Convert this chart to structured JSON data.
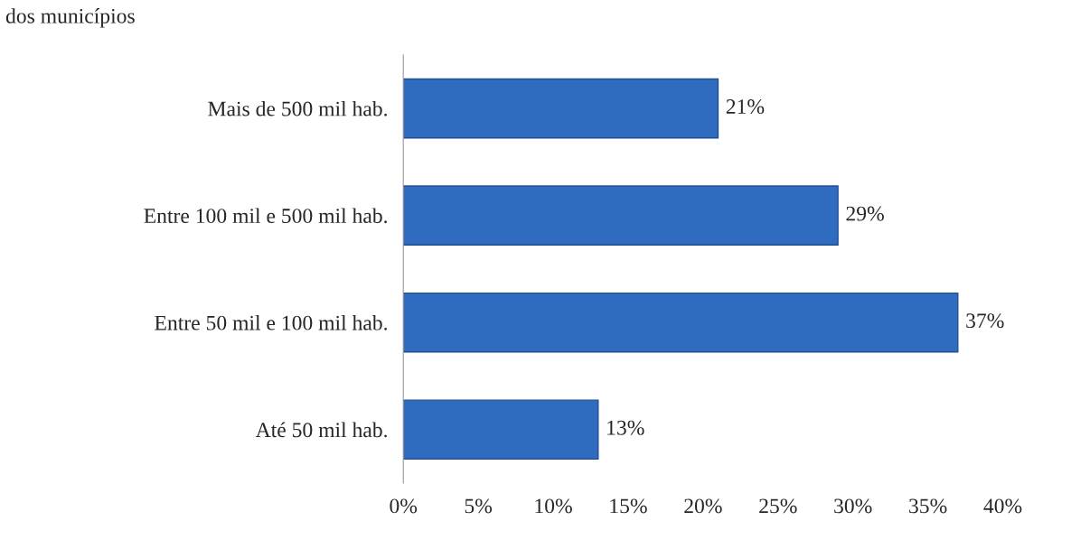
{
  "chart_data": {
    "type": "bar",
    "orientation": "horizontal",
    "title": "dos municípios",
    "categories": [
      "Mais de 500 mil hab.",
      "Entre 100 mil e 500 mil hab.",
      "Entre 50 mil e 100 mil hab.",
      "Até 50 mil hab."
    ],
    "values": [
      21,
      29,
      37,
      13
    ],
    "value_labels": [
      "21%",
      "29%",
      "37%",
      "13%"
    ],
    "color": "#2f6cc0",
    "xlim": [
      0,
      40
    ],
    "xticks": [
      {
        "value": 0,
        "label": "0%"
      },
      {
        "value": 5,
        "label": "5%"
      },
      {
        "value": 10,
        "label": "10%"
      },
      {
        "value": 15,
        "label": "15%"
      },
      {
        "value": 20,
        "label": "20%"
      },
      {
        "value": 25,
        "label": "25%"
      },
      {
        "value": 30,
        "label": "30%"
      },
      {
        "value": 35,
        "label": "35%"
      },
      {
        "value": 40,
        "label": "40%"
      }
    ],
    "grid": false,
    "legend": false
  }
}
